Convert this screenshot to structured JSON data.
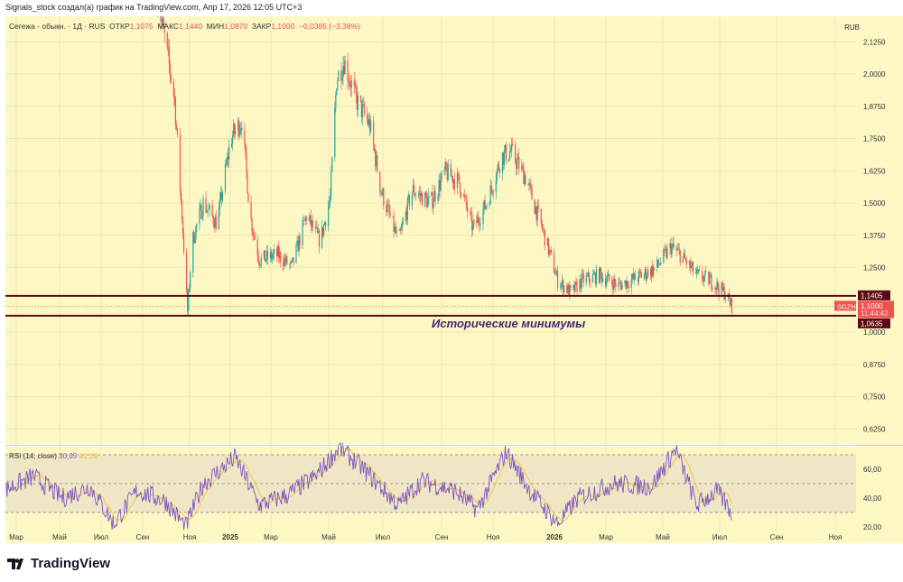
{
  "header": {
    "text": "Signals_stock создал(а) график на TradingView.com, Апр 17, 2026 12:05 UTC+3"
  },
  "legend": {
    "symbol": "Сегежа - обыкн. · 1Д · RUS",
    "open_label": "ОТКР",
    "open": "1,1075",
    "high_label": "МАКС",
    "high": "1,1440",
    "low_label": "МИН",
    "low": "1,0870",
    "close_label": "ЗАКР",
    "close": "1,1000",
    "change": "−0,0385 (−3,38%)"
  },
  "currency": "RUB",
  "annotation": "Исторические минимумы",
  "rsi_legend": {
    "name": "RSI (14, close)",
    "rsi": "30,05",
    "ma": "41,18"
  },
  "colors": {
    "background": "#fdf7c4",
    "up": "#26a69a",
    "down": "#ef5350",
    "level_line": "#5c0a14",
    "rsi": "#7e57c2",
    "rsi_ma": "#f5c542"
  },
  "brand": "TradingView",
  "chart_data": {
    "type": "candlestick",
    "price_axis_ticks": [
      "2,1250",
      "2,0000",
      "1,8750",
      "1,7500",
      "1,6250",
      "1,5000",
      "1,3750",
      "1,2500",
      "1,0000",
      "0,8750",
      "0,7500",
      "0,6250"
    ],
    "price_range": [
      0.58,
      2.16
    ],
    "time_axis_ticks": [
      "Мар",
      "Май",
      "Июл",
      "Сен",
      "Ноя",
      "2025",
      "Мар",
      "Май",
      "Июл",
      "Сен",
      "Ноя",
      "2026",
      "Мар",
      "Май",
      "Июл",
      "Сен",
      "Ноя"
    ],
    "levels": [
      {
        "price": 1.1405,
        "label": "1,1405"
      },
      {
        "price": 1.0635,
        "label": "1,0635"
      }
    ],
    "last_price": {
      "symbol": "SGZH",
      "price": "1,1000",
      "countdown": "11:44:42"
    },
    "close_keypoints": [
      [
        "2024-08-01",
        2.3
      ],
      [
        "2024-08-10",
        2.12
      ],
      [
        "2024-08-20",
        1.9
      ],
      [
        "2024-08-28",
        1.45
      ],
      [
        "2024-09-03",
        1.08
      ],
      [
        "2024-09-08",
        1.35
      ],
      [
        "2024-09-20",
        1.5
      ],
      [
        "2024-10-05",
        1.42
      ],
      [
        "2024-10-20",
        1.75
      ],
      [
        "2024-11-01",
        1.82
      ],
      [
        "2024-11-10",
        1.45
      ],
      [
        "2024-11-20",
        1.28
      ],
      [
        "2024-12-10",
        1.3
      ],
      [
        "2024-12-25",
        1.25
      ],
      [
        "2025-01-10",
        1.45
      ],
      [
        "2025-01-25",
        1.35
      ],
      [
        "2025-02-05",
        1.52
      ],
      [
        "2025-02-12",
        1.98
      ],
      [
        "2025-02-20",
        2.05
      ],
      [
        "2025-03-05",
        1.9
      ],
      [
        "2025-03-20",
        1.8
      ],
      [
        "2025-04-01",
        1.55
      ],
      [
        "2025-04-20",
        1.35
      ],
      [
        "2025-05-05",
        1.55
      ],
      [
        "2025-05-25",
        1.5
      ],
      [
        "2025-06-10",
        1.62
      ],
      [
        "2025-06-25",
        1.58
      ],
      [
        "2025-07-10",
        1.4
      ],
      [
        "2025-07-25",
        1.5
      ],
      [
        "2025-08-10",
        1.68
      ],
      [
        "2025-08-20",
        1.7
      ],
      [
        "2025-09-05",
        1.6
      ],
      [
        "2025-09-25",
        1.38
      ],
      [
        "2025-10-10",
        1.2
      ],
      [
        "2025-10-25",
        1.15
      ],
      [
        "2025-11-05",
        1.2
      ],
      [
        "2025-11-25",
        1.22
      ],
      [
        "2025-12-15",
        1.18
      ],
      [
        "2026-01-10",
        1.22
      ],
      [
        "2026-01-25",
        1.25
      ],
      [
        "2026-02-10",
        1.33
      ],
      [
        "2026-02-20",
        1.3
      ],
      [
        "2026-03-10",
        1.22
      ],
      [
        "2026-03-25",
        1.2
      ],
      [
        "2026-04-10",
        1.15
      ],
      [
        "2026-04-17",
        1.1
      ]
    ],
    "rsi_axis_ticks": [
      "60,00",
      "40,00",
      "20,00"
    ],
    "rsi_bands": [
      30,
      50,
      70
    ],
    "rsi_keypoints": [
      [
        "2024-02-15",
        45
      ],
      [
        "2024-03-20",
        55
      ],
      [
        "2024-04-20",
        40
      ],
      [
        "2024-05-20",
        48
      ],
      [
        "2024-06-15",
        22
      ],
      [
        "2024-07-10",
        45
      ],
      [
        "2024-08-10",
        38
      ],
      [
        "2024-09-01",
        20
      ],
      [
        "2024-09-20",
        50
      ],
      [
        "2024-10-25",
        68
      ],
      [
        "2024-11-20",
        35
      ],
      [
        "2024-12-20",
        42
      ],
      [
        "2025-01-20",
        55
      ],
      [
        "2025-02-15",
        75
      ],
      [
        "2025-03-10",
        62
      ],
      [
        "2025-04-20",
        35
      ],
      [
        "2025-05-15",
        52
      ],
      [
        "2025-06-20",
        45
      ],
      [
        "2025-07-15",
        32
      ],
      [
        "2025-08-15",
        72
      ],
      [
        "2025-09-10",
        45
      ],
      [
        "2025-10-10",
        22
      ],
      [
        "2025-11-01",
        40
      ],
      [
        "2025-12-10",
        50
      ],
      [
        "2026-01-20",
        48
      ],
      [
        "2026-02-15",
        74
      ],
      [
        "2026-03-10",
        35
      ],
      [
        "2026-04-01",
        45
      ],
      [
        "2026-04-17",
        30
      ]
    ]
  }
}
